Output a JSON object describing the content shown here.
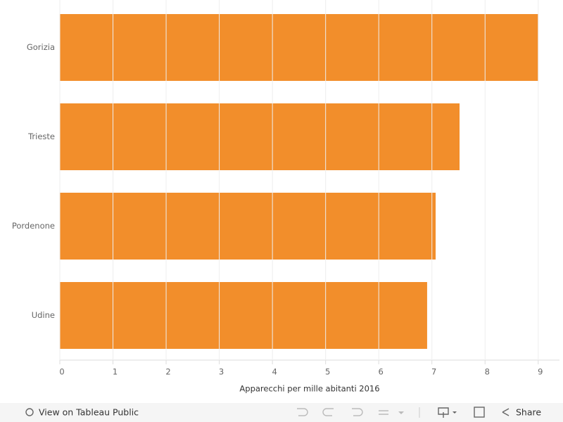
{
  "chart_data": {
    "type": "bar",
    "orientation": "horizontal",
    "categories": [
      "Gorizia",
      "Trieste",
      "Pordenone",
      "Udine"
    ],
    "values": [
      9.0,
      7.52,
      7.07,
      6.91
    ],
    "color": "#f28e2b",
    "x_label": "Apparecchi per mille abitanti 2016",
    "xlim": [
      0,
      9.4
    ],
    "xticks": [
      0,
      1,
      2,
      3,
      4,
      5,
      6,
      7,
      8,
      9
    ],
    "grid": true
  },
  "toolbar": {
    "view_link": "View on Tableau Public",
    "share": "Share"
  }
}
